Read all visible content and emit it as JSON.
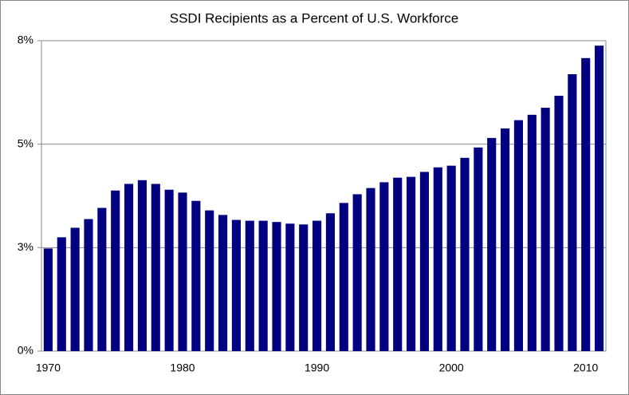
{
  "chart_data": {
    "type": "bar",
    "title": "SSDI Recipients as a Percent of U.S. Workforce",
    "x": [
      1970,
      1971,
      1972,
      1973,
      1974,
      1975,
      1976,
      1977,
      1978,
      1979,
      1980,
      1981,
      1982,
      1983,
      1984,
      1985,
      1986,
      1987,
      1988,
      1989,
      1990,
      1991,
      1992,
      1993,
      1994,
      1995,
      1996,
      1997,
      1998,
      1999,
      2000,
      2001,
      2002,
      2003,
      2004,
      2005,
      2006,
      2007,
      2008,
      2009,
      2010,
      2011
    ],
    "values": [
      2.48,
      2.75,
      2.98,
      3.19,
      3.46,
      3.88,
      4.04,
      4.13,
      4.04,
      3.9,
      3.83,
      3.63,
      3.4,
      3.29,
      3.17,
      3.15,
      3.15,
      3.12,
      3.08,
      3.06,
      3.15,
      3.33,
      3.58,
      3.79,
      3.94,
      4.08,
      4.19,
      4.21,
      4.33,
      4.44,
      4.48,
      4.67,
      4.92,
      5.15,
      5.38,
      5.58,
      5.71,
      5.88,
      6.17,
      6.69,
      7.08,
      7.38
    ],
    "color": "#000080",
    "xlim": [
      1969.5,
      2011.5
    ],
    "xticks": [
      1970,
      1980,
      1990,
      2000,
      2010
    ],
    "ylim": [
      0,
      7.5
    ],
    "yticks": [
      {
        "value": 0,
        "label": "0%"
      },
      {
        "value": 2.5,
        "label": "3%"
      },
      {
        "value": 5,
        "label": "5%"
      },
      {
        "value": 7.5,
        "label": "8%"
      }
    ],
    "grid": true
  }
}
